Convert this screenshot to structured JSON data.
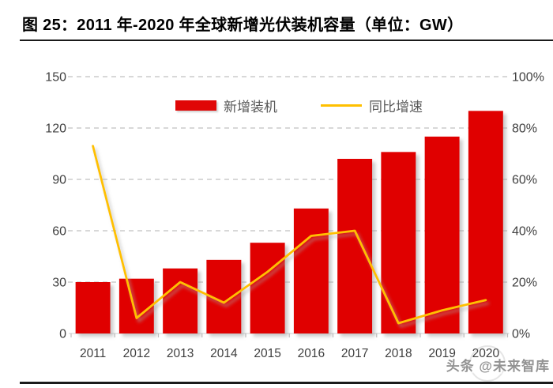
{
  "figure": {
    "title": "图 25：2011 年-2020 年全球新增光伏装机容量（单位：GW）",
    "watermark": "头条 @未来智库"
  },
  "legend": {
    "items": [
      {
        "label": "新增装机",
        "marker": "bar-swatch",
        "color": "#e00606"
      },
      {
        "label": "同比增速",
        "marker": "line-swatch",
        "color": "#ffc000"
      }
    ]
  },
  "chart_data": {
    "type": "bar",
    "title": "图 25：2011 年-2020 年全球新增光伏装机容量（单位：GW）",
    "categories": [
      "2011",
      "2012",
      "2013",
      "2014",
      "2015",
      "2016",
      "2017",
      "2018",
      "2019",
      "2020"
    ],
    "series": [
      {
        "name": "新增装机",
        "chart": "bar",
        "axis": "left",
        "unit": "GW",
        "color": "#e00606",
        "values": [
          30,
          32,
          38,
          43,
          53,
          73,
          102,
          106,
          115,
          130
        ]
      },
      {
        "name": "同比增速",
        "chart": "line",
        "axis": "right",
        "unit": "%",
        "color": "#ffc000",
        "values": [
          73,
          6,
          20,
          12,
          24,
          38,
          40,
          4,
          9,
          13
        ]
      }
    ],
    "left_axis": {
      "ticks": [
        "150",
        "120",
        "90",
        "60",
        "30",
        "0"
      ],
      "min": 0,
      "max": 150
    },
    "right_axis": {
      "ticks": [
        "100%",
        "80%",
        "60%",
        "40%",
        "20%",
        "0%"
      ],
      "min": 0,
      "max": 100
    },
    "grid": "horizontal-dashed",
    "legend_position": "top-center",
    "label_color": "#3f3f3f"
  }
}
